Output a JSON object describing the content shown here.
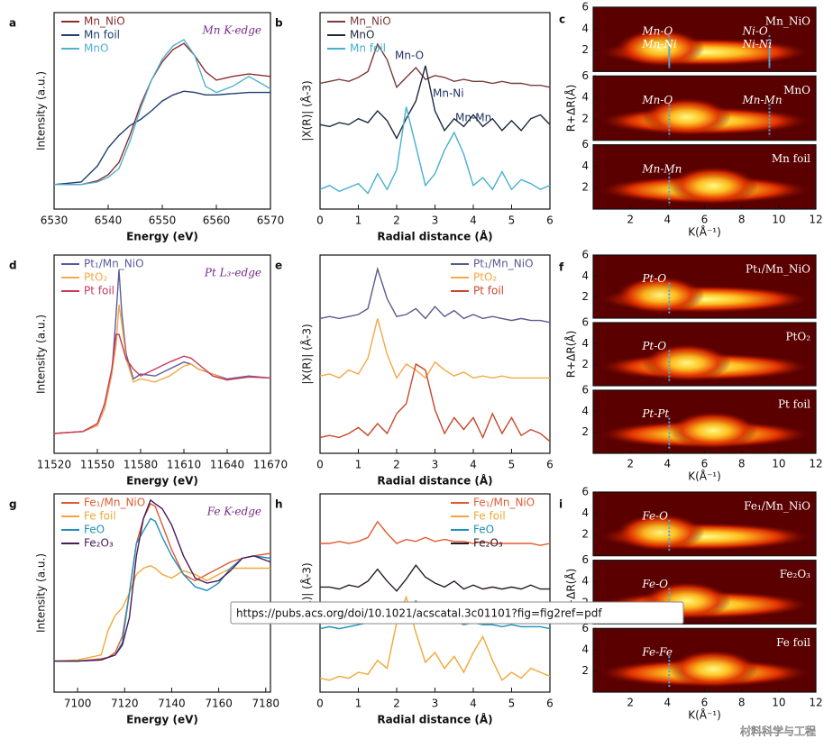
{
  "chart_data": [
    {
      "type": "line",
      "panel": "a",
      "title": "Mn K-edge",
      "x_label": "Energy (eV)",
      "y_label": "Intensity (a.u.)",
      "legend": "upper left",
      "x": [
        6530,
        6535,
        6538,
        6540,
        6542,
        6544,
        6546,
        6548,
        6550,
        6552,
        6554,
        6556,
        6558,
        6560,
        6563,
        6566,
        6570
      ],
      "xlim": [
        6530,
        6570
      ],
      "xticks": [
        6530,
        6540,
        6550,
        6560,
        6570
      ],
      "ylim": [
        0,
        1.6
      ],
      "series": [
        {
          "name": "Mn_NiO",
          "color": "#8b2d2d",
          "values": [
            0.2,
            0.2,
            0.23,
            0.28,
            0.38,
            0.6,
            0.85,
            1.05,
            1.2,
            1.3,
            1.35,
            1.25,
            1.12,
            1.05,
            1.08,
            1.1,
            1.08
          ]
        },
        {
          "name": "Mn foil",
          "color": "#1f3f6e",
          "values": [
            0.2,
            0.22,
            0.35,
            0.5,
            0.6,
            0.68,
            0.73,
            0.8,
            0.88,
            0.93,
            0.96,
            0.95,
            0.93,
            0.93,
            0.94,
            0.95,
            0.95
          ]
        },
        {
          "name": "MnO",
          "color": "#4fb0d0",
          "values": [
            0.2,
            0.2,
            0.22,
            0.26,
            0.33,
            0.55,
            0.82,
            1.05,
            1.22,
            1.33,
            1.38,
            1.25,
            1.0,
            0.95,
            1.0,
            1.08,
            0.98
          ]
        }
      ]
    },
    {
      "type": "line",
      "panel": "b",
      "x_label": "Radial distance (Å)",
      "y_label": "|X(R)| (Å-3)",
      "legend": "upper left",
      "annotations": [
        "Mn-O",
        "Mn-Ni",
        "Mn-Mn"
      ],
      "x": [
        0,
        0.25,
        0.5,
        0.75,
        1,
        1.25,
        1.5,
        1.75,
        2,
        2.25,
        2.5,
        2.75,
        3,
        3.25,
        3.5,
        3.75,
        4,
        4.25,
        4.5,
        4.75,
        5,
        5.25,
        5.5,
        5.75,
        6
      ],
      "xlim": [
        0,
        6
      ],
      "xticks": [
        0,
        1,
        2,
        3,
        4,
        5,
        6
      ],
      "ylim": [
        0,
        10
      ],
      "series": [
        {
          "name": "Mn_NiO",
          "color": "#7a3a3a",
          "values": [
            6.4,
            6.5,
            6.6,
            6.5,
            6.7,
            7.0,
            8.4,
            7.6,
            6.2,
            6.7,
            7.2,
            6.6,
            6.8,
            6.7,
            6.5,
            6.6,
            6.5,
            6.5,
            6.4,
            6.5,
            6.4,
            6.4,
            6.3,
            6.3,
            6.2
          ]
        },
        {
          "name": "MnO",
          "color": "#1c2a3c",
          "values": [
            4.3,
            4.2,
            4.4,
            4.3,
            4.6,
            4.4,
            5.0,
            4.5,
            3.6,
            4.6,
            5.5,
            7.3,
            5.0,
            4.0,
            4.6,
            4.2,
            4.8,
            4.2,
            4.6,
            4.0,
            4.5,
            4.0,
            4.6,
            4.8,
            4.3
          ]
        },
        {
          "name": "Mn foil",
          "color": "#45b0cf",
          "values": [
            1.0,
            1.2,
            0.9,
            1.1,
            1.3,
            0.8,
            1.8,
            1.0,
            2.0,
            5.2,
            3.2,
            1.2,
            1.8,
            3.0,
            3.9,
            2.8,
            1.2,
            1.6,
            1.0,
            1.9,
            1.0,
            1.5,
            1.3,
            1.0,
            1.2
          ]
        }
      ]
    },
    {
      "type": "heatmap",
      "panel": "c",
      "x_label": "K(Å⁻¹)",
      "y_label": "R+ΔR(Å)",
      "xlim": [
        0,
        12
      ],
      "xticks": [
        2,
        4,
        6,
        8,
        10,
        12
      ],
      "ylim": [
        0,
        6
      ],
      "yticks": [
        2,
        4,
        6
      ],
      "panels": [
        {
          "label": "Mn_NiO",
          "annotations": [
            "Mn-O",
            "Ni-O",
            "Mn-Ni",
            "Ni-Ni"
          ]
        },
        {
          "label": "MnO",
          "annotations": [
            "Mn-O",
            "Mn-Mn"
          ]
        },
        {
          "label": "Mn foil",
          "annotations": [
            "Mn-Mn"
          ]
        }
      ]
    },
    {
      "type": "line",
      "panel": "d",
      "title": "Pt L₃-edge",
      "x_label": "Energy (eV)",
      "y_label": "Intensity (a.u.)",
      "legend": "upper left",
      "x": [
        11520,
        11540,
        11550,
        11555,
        11560,
        11563,
        11565,
        11567,
        11570,
        11575,
        11580,
        11590,
        11600,
        11610,
        11615,
        11620,
        11630,
        11640,
        11655,
        11670
      ],
      "xlim": [
        11520,
        11670
      ],
      "xticks": [
        11520,
        11550,
        11580,
        11610,
        11640,
        11670
      ],
      "ylim": [
        0,
        2
      ],
      "series": [
        {
          "name": "Pt₁/Mn_NiO",
          "color": "#5a5aa0",
          "values": [
            0.2,
            0.22,
            0.28,
            0.45,
            0.8,
            1.4,
            1.85,
            1.4,
            1.0,
            0.75,
            0.8,
            0.78,
            0.85,
            0.92,
            0.9,
            0.85,
            0.8,
            0.75,
            0.78,
            0.76
          ]
        },
        {
          "name": "PtO₂",
          "color": "#f5a847",
          "values": [
            0.2,
            0.22,
            0.28,
            0.45,
            0.8,
            1.1,
            1.5,
            1.3,
            0.95,
            0.72,
            0.75,
            0.72,
            0.78,
            0.88,
            0.9,
            0.85,
            0.8,
            0.74,
            0.77,
            0.76
          ]
        },
        {
          "name": "Pt foil",
          "color": "#c83a5a",
          "values": [
            0.2,
            0.22,
            0.3,
            0.5,
            0.85,
            1.2,
            1.2,
            1.1,
            0.95,
            0.85,
            0.78,
            0.85,
            0.92,
            0.98,
            0.96,
            0.9,
            0.78,
            0.74,
            0.77,
            0.76
          ]
        }
      ]
    },
    {
      "type": "line",
      "panel": "e",
      "x_label": "Radial distance (Å)",
      "y_label": "|X(R)| (Å-3)",
      "legend": "upper right",
      "x": [
        0,
        0.25,
        0.5,
        0.75,
        1,
        1.25,
        1.5,
        1.75,
        2,
        2.25,
        2.5,
        2.75,
        3,
        3.25,
        3.5,
        3.75,
        4,
        4.25,
        4.5,
        4.75,
        5,
        5.25,
        5.5,
        5.75,
        6
      ],
      "xlim": [
        0,
        6
      ],
      "xticks": [
        0,
        1,
        2,
        3,
        4,
        5,
        6
      ],
      "ylim": [
        0,
        10
      ],
      "series": [
        {
          "name": "Pt₁/Mn_NiO",
          "color": "#5a5a90",
          "values": [
            6.8,
            6.9,
            6.8,
            6.9,
            7.0,
            7.3,
            9.3,
            7.8,
            6.9,
            7.0,
            7.3,
            6.8,
            7.4,
            6.9,
            7.2,
            6.8,
            7.0,
            6.8,
            6.9,
            6.8,
            6.7,
            6.8,
            6.7,
            6.7,
            6.6
          ]
        },
        {
          "name": "PtO₂",
          "color": "#f5a847",
          "values": [
            3.9,
            4.0,
            3.8,
            4.2,
            4.0,
            4.8,
            6.8,
            5.0,
            3.8,
            4.5,
            4.2,
            3.8,
            4.6,
            4.2,
            3.9,
            4.1,
            3.8,
            3.9,
            3.8,
            3.9,
            3.8,
            3.8,
            3.8,
            3.8,
            3.8
          ]
        },
        {
          "name": "Pt foil",
          "color": "#c8462a",
          "values": [
            0.8,
            0.9,
            0.8,
            1.0,
            1.3,
            0.9,
            1.5,
            1.0,
            2.0,
            2.5,
            4.5,
            4.2,
            2.2,
            1.0,
            1.8,
            1.2,
            1.8,
            0.8,
            2.0,
            1.0,
            1.8,
            0.9,
            1.2,
            1.0,
            0.6
          ]
        }
      ]
    },
    {
      "type": "heatmap",
      "panel": "f",
      "x_label": "K(Å⁻¹)",
      "y_label": "R+ΔR(Å)",
      "xlim": [
        0,
        12
      ],
      "xticks": [
        2,
        4,
        6,
        8,
        10,
        12
      ],
      "ylim": [
        0,
        6
      ],
      "yticks": [
        2,
        4,
        6
      ],
      "panels": [
        {
          "label": "Pt₁/Mn_NiO",
          "annotations": [
            "Pt-O"
          ]
        },
        {
          "label": "PtO₂",
          "annotations": [
            "Pt-O"
          ]
        },
        {
          "label": "Pt foil",
          "annotations": [
            "Pt-Pt"
          ]
        }
      ]
    },
    {
      "type": "line",
      "panel": "g",
      "title": "Fe K-edge",
      "x_label": "Energy (eV)",
      "y_label": "Intensity (a.u.)",
      "legend": "upper left",
      "x": [
        7090,
        7100,
        7110,
        7113,
        7116,
        7119,
        7122,
        7125,
        7128,
        7131,
        7133,
        7136,
        7140,
        7145,
        7150,
        7155,
        7160,
        7165,
        7170,
        7175,
        7182
      ],
      "xlim": [
        7090,
        7182
      ],
      "xticks": [
        7100,
        7120,
        7140,
        7160,
        7180
      ],
      "ylim": [
        0,
        1.6
      ],
      "series": [
        {
          "name": "Fe₁/Mn_NiO",
          "color": "#e05a30",
          "values": [
            0.25,
            0.25,
            0.27,
            0.28,
            0.32,
            0.45,
            0.8,
            1.2,
            1.4,
            1.52,
            1.5,
            1.35,
            1.15,
            0.95,
            0.9,
            0.95,
            1.0,
            1.05,
            1.08,
            1.1,
            1.12
          ]
        },
        {
          "name": "Fe foil",
          "color": "#f0a838",
          "values": [
            0.25,
            0.26,
            0.3,
            0.5,
            0.62,
            0.68,
            0.8,
            0.95,
            1.0,
            1.02,
            1.0,
            0.95,
            0.92,
            0.98,
            0.95,
            0.9,
            0.95,
            1.0,
            1.0,
            1.0,
            1.0
          ]
        },
        {
          "name": "FeO",
          "color": "#2090b8",
          "values": [
            0.25,
            0.25,
            0.26,
            0.28,
            0.3,
            0.4,
            0.8,
            1.2,
            1.3,
            1.4,
            1.38,
            1.25,
            1.1,
            0.95,
            0.85,
            0.82,
            0.88,
            1.0,
            1.08,
            1.1,
            1.08
          ]
        },
        {
          "name": "Fe₂O₃",
          "color": "#4a1a5a",
          "values": [
            0.25,
            0.25,
            0.26,
            0.28,
            0.3,
            0.38,
            0.6,
            1.1,
            1.4,
            1.55,
            1.52,
            1.48,
            1.35,
            1.1,
            0.92,
            0.88,
            0.9,
            0.98,
            1.08,
            1.1,
            1.05
          ]
        }
      ]
    },
    {
      "type": "line",
      "panel": "h",
      "x_label": "Radial distance (Å)",
      "y_label": "|X(R)| (Å-3)",
      "legend": "upper right",
      "x": [
        0,
        0.25,
        0.5,
        0.75,
        1,
        1.25,
        1.5,
        1.75,
        2,
        2.25,
        2.5,
        2.75,
        3,
        3.25,
        3.5,
        3.75,
        4,
        4.25,
        4.5,
        4.75,
        5,
        5.25,
        5.5,
        5.75,
        6
      ],
      "xlim": [
        0,
        6
      ],
      "xticks": [
        0,
        1,
        2,
        3,
        4,
        5,
        6
      ],
      "ylim": [
        0,
        10
      ],
      "series": [
        {
          "name": "Fe₁/Mn_NiO",
          "color": "#e05a30",
          "values": [
            7.5,
            7.5,
            7.6,
            7.5,
            7.6,
            7.8,
            8.6,
            8.0,
            7.5,
            7.7,
            7.6,
            7.8,
            7.6,
            7.7,
            7.6,
            7.6,
            7.5,
            7.6,
            7.5,
            7.5,
            7.5,
            7.5,
            7.5,
            7.4,
            7.5
          ]
        },
        {
          "name": "Fe foil",
          "color": "#f0a838",
          "values": [
            0.7,
            0.6,
            0.8,
            0.7,
            1.0,
            0.9,
            1.6,
            1.2,
            3.5,
            4.8,
            3.0,
            1.5,
            2.0,
            1.2,
            1.8,
            1.0,
            2.0,
            2.8,
            1.6,
            0.6,
            1.0,
            0.7,
            1.2,
            1.0,
            0.8
          ]
        },
        {
          "name": "FeO",
          "color": "#2090b8",
          "values": [
            3.2,
            3.3,
            3.2,
            3.3,
            3.4,
            3.5,
            4.0,
            3.8,
            3.6,
            4.0,
            4.6,
            4.0,
            3.6,
            3.5,
            3.6,
            3.4,
            3.5,
            3.4,
            3.4,
            3.3,
            3.4,
            3.3,
            3.3,
            3.3,
            3.2
          ]
        },
        {
          "name": "Fe₂O₃",
          "color": "#2a1a2a",
          "values": [
            5.3,
            5.3,
            5.2,
            5.4,
            5.3,
            5.6,
            6.2,
            5.6,
            5.1,
            5.7,
            6.4,
            5.8,
            5.5,
            5.3,
            5.6,
            5.2,
            5.4,
            5.2,
            5.3,
            5.2,
            5.3,
            5.2,
            5.4,
            5.2,
            5.2
          ]
        }
      ]
    },
    {
      "type": "heatmap",
      "panel": "i",
      "x_label": "K(Å⁻¹)",
      "y_label": "R+ΔR(Å)",
      "xlim": [
        0,
        12
      ],
      "xticks": [
        2,
        4,
        6,
        8,
        10,
        12
      ],
      "ylim": [
        0,
        6
      ],
      "yticks": [
        2,
        4,
        6
      ],
      "panels": [
        {
          "label": "Fe₁/Mn_NiO",
          "annotations": [
            "Fe-O"
          ]
        },
        {
          "label": "Fe₂O₃",
          "annotations": [
            "Fe-O"
          ]
        },
        {
          "label": "Fe foil",
          "annotations": [
            "Fe-Fe"
          ]
        }
      ]
    }
  ],
  "tooltip": "https://pubs.acs.org/doi/10.1021/acscatal.3c01101?fig=fig2ref=pdf",
  "watermark": "材料科学与工程"
}
